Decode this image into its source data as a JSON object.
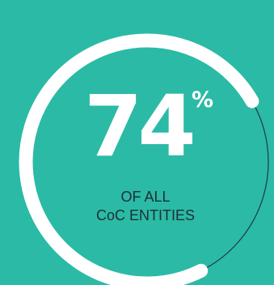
{
  "stat": {
    "value": "74",
    "unit": "%",
    "progress_fraction": 0.74,
    "caption_line1": "OF ALL",
    "caption_line2": "CoC ENTITIES"
  },
  "colors": {
    "background": "#2bbaa5",
    "progress_arc": "#ffffff",
    "remainder_arc": "#1f3a42",
    "value_text": "#ffffff",
    "caption_text": "#1f2f39"
  }
}
